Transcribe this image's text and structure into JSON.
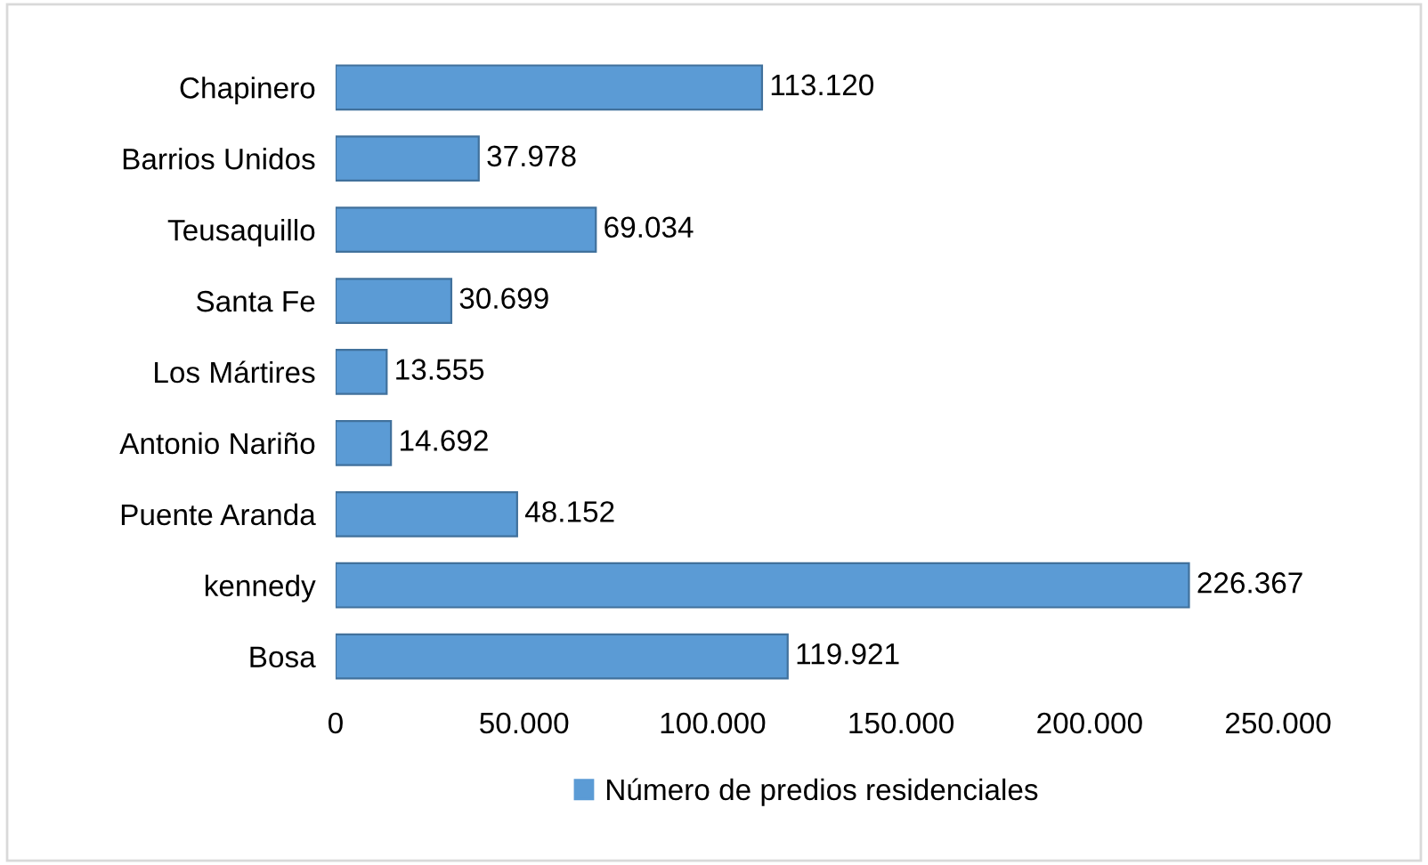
{
  "chart_data": {
    "type": "bar",
    "orientation": "horizontal",
    "categories": [
      "Chapinero",
      "Barrios Unidos",
      "Teusaquillo",
      "Santa Fe",
      "Los Mártires",
      "Antonio Nariño",
      "Puente Aranda",
      "kennedy",
      "Bosa"
    ],
    "series": [
      {
        "name": "Número de predios residenciales",
        "color": "#5b9bd5",
        "values": [
          113120,
          37978,
          69034,
          30699,
          13555,
          14692,
          48152,
          226367,
          119921
        ],
        "value_labels": [
          "113.120",
          "37.978",
          "69.034",
          "30.699",
          "13.555",
          "14.692",
          "48.152",
          "226.367",
          "119.921"
        ]
      }
    ],
    "xlim": [
      0,
      250000
    ],
    "xticks": [
      0,
      {
        "value": 50000,
        "label": "50.000"
      },
      {
        "value": 100000,
        "label": "100.000"
      },
      {
        "value": 150000,
        "label": "150.000"
      },
      {
        "value": 200000,
        "label": "200.000"
      },
      {
        "value": 250000,
        "label": "250.000"
      }
    ],
    "grid": false,
    "legend": "bottom"
  }
}
